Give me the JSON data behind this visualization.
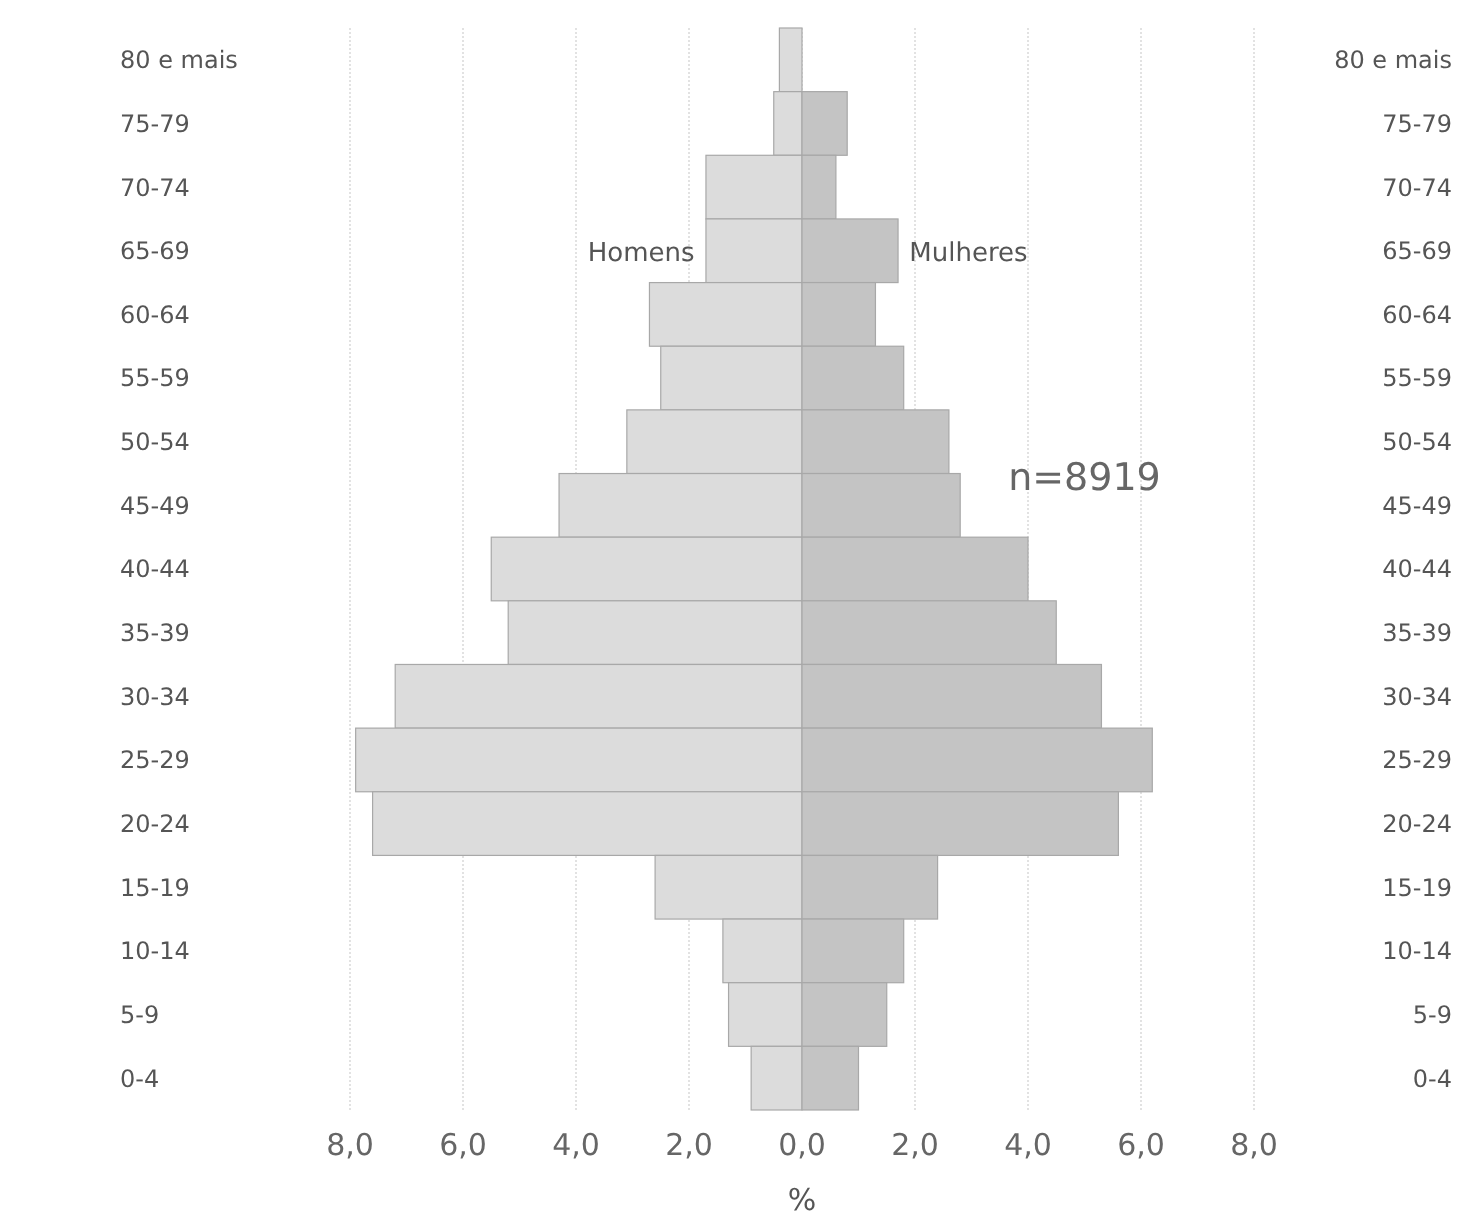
{
  "chart_data": {
    "type": "bar",
    "orientation": "horizontal",
    "xlabel": "%",
    "categories": [
      "80 e mais",
      "75-79",
      "70-74",
      "65-69",
      "60-64",
      "55-59",
      "50-54",
      "45-49",
      "40-44",
      "35-39",
      "30-34",
      "25-29",
      "20-24",
      "15-19",
      "10-14",
      "5-9",
      "0-4"
    ],
    "series": [
      {
        "name": "Homens",
        "color": "#dcdcdc",
        "values": [
          -0.4,
          -0.5,
          -1.7,
          -1.7,
          -2.7,
          -2.5,
          -3.1,
          -4.3,
          -5.5,
          -5.2,
          -7.2,
          -7.9,
          -7.6,
          -2.6,
          -1.4,
          -1.3,
          -0.9
        ]
      },
      {
        "name": "Mulheres",
        "color": "#c4c4c4",
        "values": [
          0,
          0.8,
          0.6,
          1.7,
          1.3,
          1.8,
          2.6,
          2.8,
          4.0,
          4.5,
          5.3,
          6.2,
          5.6,
          2.4,
          1.8,
          1.5,
          1.0
        ]
      }
    ],
    "xlim": [
      -8,
      8
    ],
    "xticks": [
      {
        "value": -8,
        "label": "8,0"
      },
      {
        "value": -6,
        "label": "6,0"
      },
      {
        "value": -4,
        "label": "4,0"
      },
      {
        "value": -2,
        "label": "2,0"
      },
      {
        "value": 0,
        "label": "0,0"
      },
      {
        "value": 2,
        "label": "2,0"
      },
      {
        "value": 4,
        "label": "4,0"
      },
      {
        "value": 6,
        "label": "6,0"
      },
      {
        "value": 8,
        "label": "8,0"
      }
    ],
    "stacked": true,
    "grid": "x",
    "annotations": [
      "n=8919"
    ]
  }
}
